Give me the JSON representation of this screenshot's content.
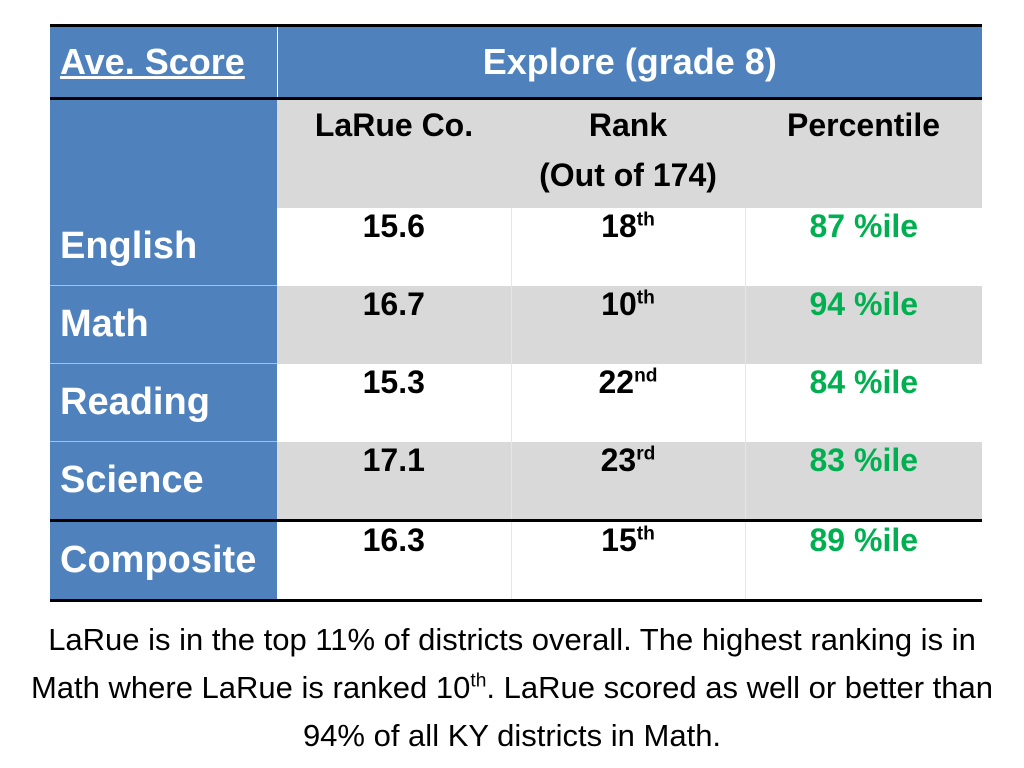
{
  "header": {
    "corner_label": "Ave. Score",
    "group_label": "Explore (grade 8)"
  },
  "columns": {
    "county": "LaRue Co.",
    "rank_line1": "Rank",
    "rank_line2": "(Out of 174)",
    "percentile": "Percentile"
  },
  "rows": [
    {
      "subject": "English",
      "score": "15.6",
      "rank_num": "18",
      "rank_suffix": "th",
      "percentile": "87 %ile"
    },
    {
      "subject": "Math",
      "score": "16.7",
      "rank_num": "10",
      "rank_suffix": "th",
      "percentile": "94 %ile"
    },
    {
      "subject": "Reading",
      "score": "15.3",
      "rank_num": "22",
      "rank_suffix": "nd",
      "percentile": "84 %ile"
    },
    {
      "subject": "Science",
      "score": "17.1",
      "rank_num": "23",
      "rank_suffix": "rd",
      "percentile": "83 %ile"
    },
    {
      "subject": "Composite",
      "score": "16.3",
      "rank_num": "15",
      "rank_suffix": "th",
      "percentile": "89 %ile"
    }
  ],
  "caption": {
    "part1": "LaRue is in the top 11% of districts overall. The highest ranking is in Math where LaRue is ranked 10",
    "sup": "th",
    "part2": ". LaRue scored as well or better than 94% of all KY districts in Math."
  },
  "colors": {
    "header_blue": "#4f81bd",
    "row_gray": "#d9d9d9",
    "percentile_green": "#00b050"
  }
}
